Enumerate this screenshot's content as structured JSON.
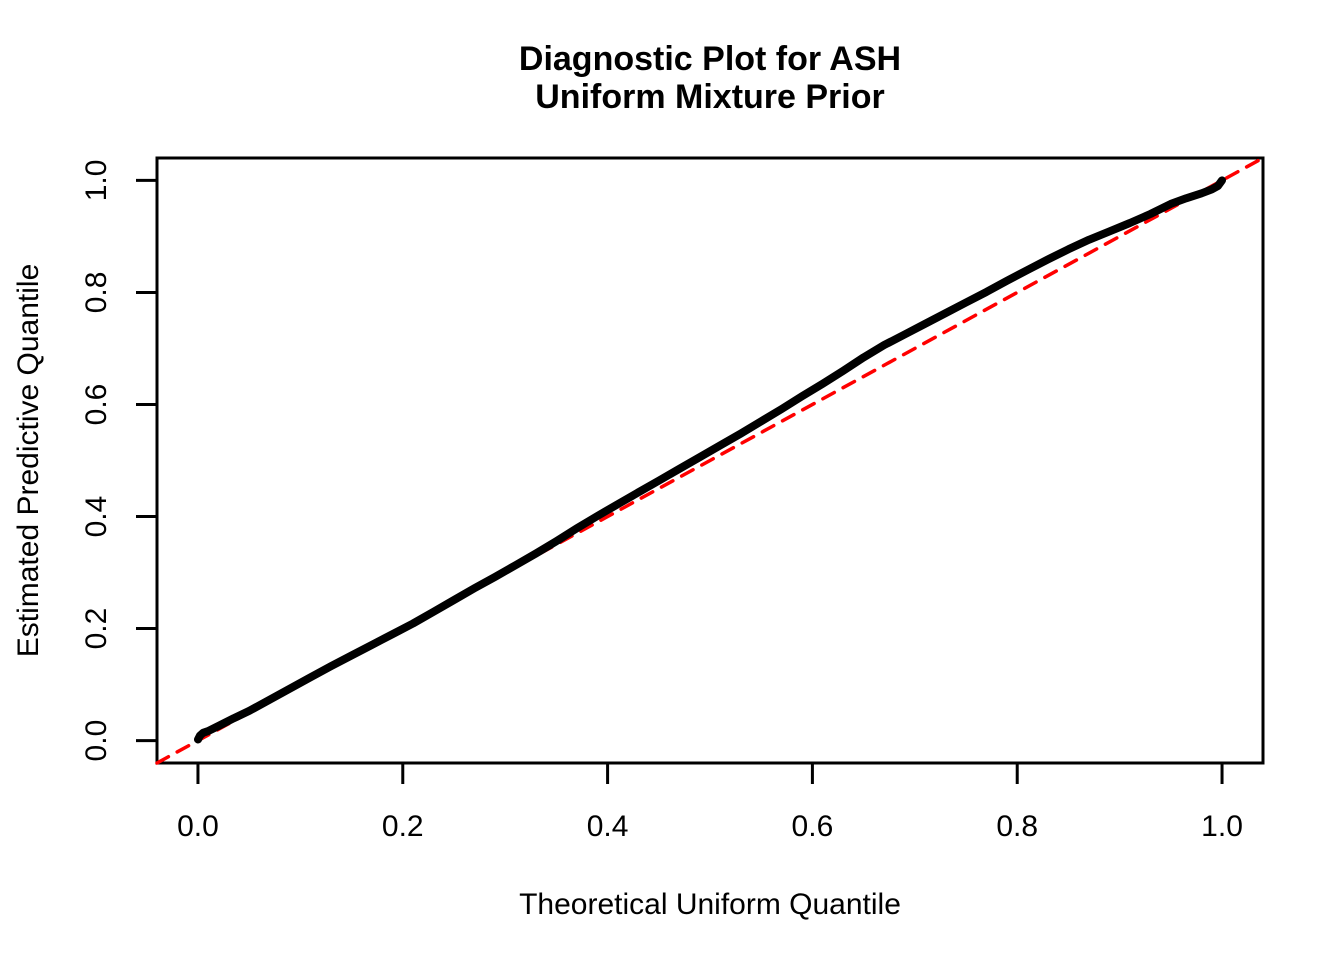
{
  "figure": {
    "title_line1": "Diagnostic Plot for ASH",
    "title_line2": "Uniform Mixture Prior",
    "xlabel": "Theoretical Uniform Quantile",
    "ylabel": "Estimated Predictive Quantile"
  },
  "chart_data": {
    "type": "line",
    "title": "Diagnostic Plot for ASH\nUniform Mixture Prior",
    "xlabel": "Theoretical Uniform Quantile",
    "ylabel": "Estimated Predictive Quantile",
    "xlim": [
      -0.04,
      1.04
    ],
    "ylim": [
      -0.04,
      1.04
    ],
    "x_ticks": [
      0.0,
      0.2,
      0.4,
      0.6,
      0.8,
      1.0
    ],
    "y_ticks": [
      0.0,
      0.2,
      0.4,
      0.6,
      0.8,
      1.0
    ],
    "x_tick_labels": [
      "0.0",
      "0.2",
      "0.4",
      "0.6",
      "0.8",
      "1.0"
    ],
    "y_tick_labels": [
      "0.0",
      "0.2",
      "0.4",
      "0.6",
      "0.8",
      "1.0"
    ],
    "grid": false,
    "legend": null,
    "frame_color": "#000000",
    "series": [
      {
        "name": "estimated-predictive-quantile-curve",
        "type": "line",
        "color": "#000000",
        "stroke_width": 8,
        "dashed": false,
        "points": [
          [
            0.0,
            0.002
          ],
          [
            0.002,
            0.009
          ],
          [
            0.005,
            0.014
          ],
          [
            0.01,
            0.017
          ],
          [
            0.02,
            0.026
          ],
          [
            0.035,
            0.04
          ],
          [
            0.05,
            0.053
          ],
          [
            0.07,
            0.073
          ],
          [
            0.09,
            0.093
          ],
          [
            0.11,
            0.113
          ],
          [
            0.13,
            0.133
          ],
          [
            0.15,
            0.152
          ],
          [
            0.17,
            0.171
          ],
          [
            0.19,
            0.19
          ],
          [
            0.21,
            0.209
          ],
          [
            0.23,
            0.23
          ],
          [
            0.25,
            0.251
          ],
          [
            0.27,
            0.272
          ],
          [
            0.29,
            0.292
          ],
          [
            0.31,
            0.313
          ],
          [
            0.33,
            0.334
          ],
          [
            0.35,
            0.356
          ],
          [
            0.37,
            0.379
          ],
          [
            0.39,
            0.401
          ],
          [
            0.41,
            0.422
          ],
          [
            0.43,
            0.443
          ],
          [
            0.45,
            0.464
          ],
          [
            0.47,
            0.485
          ],
          [
            0.49,
            0.506
          ],
          [
            0.51,
            0.527
          ],
          [
            0.53,
            0.548
          ],
          [
            0.55,
            0.57
          ],
          [
            0.57,
            0.592
          ],
          [
            0.59,
            0.615
          ],
          [
            0.61,
            0.637
          ],
          [
            0.63,
            0.66
          ],
          [
            0.65,
            0.684
          ],
          [
            0.67,
            0.706
          ],
          [
            0.69,
            0.725
          ],
          [
            0.71,
            0.744
          ],
          [
            0.73,
            0.763
          ],
          [
            0.75,
            0.782
          ],
          [
            0.77,
            0.801
          ],
          [
            0.79,
            0.821
          ],
          [
            0.81,
            0.84
          ],
          [
            0.83,
            0.859
          ],
          [
            0.85,
            0.877
          ],
          [
            0.87,
            0.894
          ],
          [
            0.89,
            0.909
          ],
          [
            0.91,
            0.924
          ],
          [
            0.93,
            0.94
          ],
          [
            0.95,
            0.958
          ],
          [
            0.965,
            0.968
          ],
          [
            0.98,
            0.977
          ],
          [
            0.99,
            0.984
          ],
          [
            0.996,
            0.99
          ],
          [
            1.0,
            1.0
          ]
        ]
      },
      {
        "name": "identity-reference-line",
        "type": "line",
        "color": "#FF0000",
        "stroke_width": 3.5,
        "dashed": true,
        "points": [
          [
            -0.04,
            -0.04
          ],
          [
            1.04,
            1.04
          ]
        ]
      }
    ]
  }
}
